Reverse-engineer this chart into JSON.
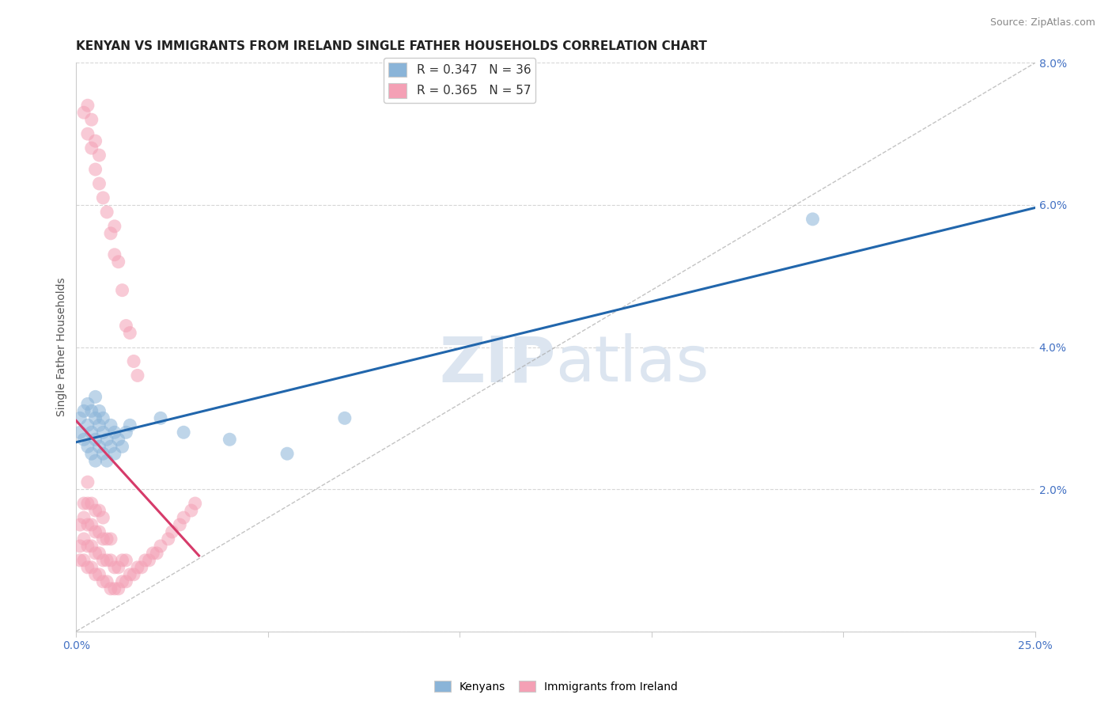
{
  "title": "KENYAN VS IMMIGRANTS FROM IRELAND SINGLE FATHER HOUSEHOLDS CORRELATION CHART",
  "source_text": "Source: ZipAtlas.com",
  "ylabel": "Single Father Households",
  "xlim": [
    0.0,
    0.25
  ],
  "ylim": [
    0.0,
    0.08
  ],
  "xticks": [
    0.0,
    0.05,
    0.1,
    0.15,
    0.2,
    0.25
  ],
  "yticks": [
    0.0,
    0.02,
    0.04,
    0.06,
    0.08
  ],
  "xticklabels": [
    "0.0%",
    "",
    "",
    "",
    "",
    "25.0%"
  ],
  "yticklabels": [
    "",
    "2.0%",
    "4.0%",
    "6.0%",
    "8.0%"
  ],
  "legend_r1": "R = 0.347   N = 36",
  "legend_r2": "R = 0.365   N = 57",
  "legend_label1": "Kenyans",
  "legend_label2": "Immigrants from Ireland",
  "color_blue": "#8ab4d8",
  "color_pink": "#f4a0b5",
  "color_blue_line": "#2166ac",
  "color_pink_line": "#d63b6a",
  "watermark_zip": "ZIP",
  "watermark_atlas": "atlas",
  "watermark_color": "#dce5f0",
  "title_fontsize": 11,
  "axis_label_fontsize": 10,
  "tick_fontsize": 10,
  "kenyan_x": [
    0.001,
    0.001,
    0.002,
    0.002,
    0.003,
    0.003,
    0.003,
    0.004,
    0.004,
    0.004,
    0.005,
    0.005,
    0.005,
    0.005,
    0.006,
    0.006,
    0.006,
    0.007,
    0.007,
    0.007,
    0.008,
    0.008,
    0.009,
    0.009,
    0.01,
    0.01,
    0.011,
    0.012,
    0.013,
    0.014,
    0.022,
    0.028,
    0.04,
    0.055,
    0.07,
    0.192
  ],
  "kenyan_y": [
    0.028,
    0.03,
    0.027,
    0.031,
    0.026,
    0.029,
    0.032,
    0.025,
    0.028,
    0.031,
    0.024,
    0.027,
    0.03,
    0.033,
    0.026,
    0.029,
    0.031,
    0.025,
    0.028,
    0.03,
    0.024,
    0.027,
    0.026,
    0.029,
    0.025,
    0.028,
    0.027,
    0.026,
    0.028,
    0.029,
    0.03,
    0.028,
    0.027,
    0.025,
    0.03,
    0.058
  ],
  "ireland_x": [
    0.001,
    0.001,
    0.001,
    0.002,
    0.002,
    0.002,
    0.002,
    0.003,
    0.003,
    0.003,
    0.003,
    0.003,
    0.004,
    0.004,
    0.004,
    0.004,
    0.005,
    0.005,
    0.005,
    0.005,
    0.006,
    0.006,
    0.006,
    0.006,
    0.007,
    0.007,
    0.007,
    0.007,
    0.008,
    0.008,
    0.008,
    0.009,
    0.009,
    0.009,
    0.01,
    0.01,
    0.011,
    0.011,
    0.012,
    0.012,
    0.013,
    0.013,
    0.014,
    0.015,
    0.016,
    0.017,
    0.018,
    0.019,
    0.02,
    0.021,
    0.022,
    0.024,
    0.025,
    0.027,
    0.028,
    0.03,
    0.031
  ],
  "ireland_y": [
    0.01,
    0.012,
    0.015,
    0.01,
    0.013,
    0.016,
    0.018,
    0.009,
    0.012,
    0.015,
    0.018,
    0.021,
    0.009,
    0.012,
    0.015,
    0.018,
    0.008,
    0.011,
    0.014,
    0.017,
    0.008,
    0.011,
    0.014,
    0.017,
    0.007,
    0.01,
    0.013,
    0.016,
    0.007,
    0.01,
    0.013,
    0.006,
    0.01,
    0.013,
    0.006,
    0.009,
    0.006,
    0.009,
    0.007,
    0.01,
    0.007,
    0.01,
    0.008,
    0.008,
    0.009,
    0.009,
    0.01,
    0.01,
    0.011,
    0.011,
    0.012,
    0.013,
    0.014,
    0.015,
    0.016,
    0.017,
    0.018
  ],
  "ireland_high_x": [
    0.002,
    0.003,
    0.003,
    0.004,
    0.004,
    0.005,
    0.005,
    0.006,
    0.006,
    0.007,
    0.008,
    0.009,
    0.01,
    0.01,
    0.011,
    0.012,
    0.013,
    0.014,
    0.015,
    0.016
  ],
  "ireland_high_y": [
    0.073,
    0.07,
    0.074,
    0.068,
    0.072,
    0.065,
    0.069,
    0.063,
    0.067,
    0.061,
    0.059,
    0.056,
    0.053,
    0.057,
    0.052,
    0.048,
    0.043,
    0.042,
    0.038,
    0.036
  ]
}
